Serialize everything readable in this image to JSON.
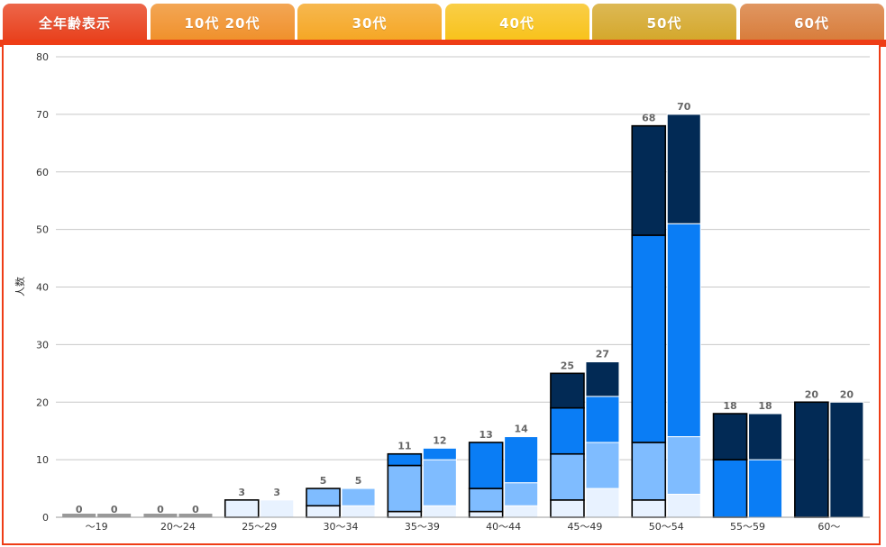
{
  "tabs": [
    {
      "label": "全年齢表示",
      "color": "#e8401c",
      "active": true
    },
    {
      "label": "10代 20代",
      "color": "#f0902a",
      "active": false
    },
    {
      "label": "30代",
      "color": "#f5a623",
      "active": false
    },
    {
      "label": "40代",
      "color": "#f8c21a",
      "active": false
    },
    {
      "label": "50代",
      "color": "#d4a72a",
      "active": false
    },
    {
      "label": "60代",
      "color": "#d87c3a",
      "active": false
    }
  ],
  "chart_data": {
    "type": "bar",
    "stacked": true,
    "ylabel": "人数",
    "ylim": [
      0,
      80
    ],
    "yticks": [
      0,
      10,
      20,
      30,
      40,
      50,
      60,
      70,
      80
    ],
    "grid": true,
    "categories": [
      "〜19",
      "20〜24",
      "25〜29",
      "30〜34",
      "35〜39",
      "40〜44",
      "45〜49",
      "50〜54",
      "55〜59",
      "60〜"
    ],
    "groups": [
      {
        "outline": true,
        "segments": [
          [
            0,
            0,
            0,
            0
          ],
          [
            0,
            0,
            0,
            0
          ],
          [
            3,
            0,
            0,
            0
          ],
          [
            2,
            3,
            0,
            0
          ],
          [
            1,
            8,
            2,
            0
          ],
          [
            1,
            4,
            8,
            0
          ],
          [
            3,
            8,
            8,
            6
          ],
          [
            3,
            10,
            36,
            19
          ],
          [
            0,
            0,
            10,
            8
          ],
          [
            0,
            0,
            0,
            20
          ]
        ],
        "totals": [
          0,
          0,
          3,
          5,
          11,
          13,
          25,
          68,
          18,
          20
        ]
      },
      {
        "outline": false,
        "segments": [
          [
            0,
            0,
            0,
            0
          ],
          [
            0,
            0,
            0,
            0
          ],
          [
            3,
            0,
            0,
            0
          ],
          [
            2,
            3,
            0,
            0
          ],
          [
            2,
            8,
            2,
            0
          ],
          [
            2,
            4,
            8,
            0
          ],
          [
            5,
            8,
            8,
            6
          ],
          [
            4,
            10,
            37,
            19
          ],
          [
            0,
            0,
            10,
            8
          ],
          [
            0,
            0,
            0,
            20
          ]
        ],
        "totals": [
          0,
          0,
          3,
          5,
          12,
          14,
          27,
          70,
          18,
          20
        ]
      }
    ],
    "segment_colors": [
      "#e8f2ff",
      "#7fbcff",
      "#0a7df5",
      "#022a55"
    ]
  }
}
